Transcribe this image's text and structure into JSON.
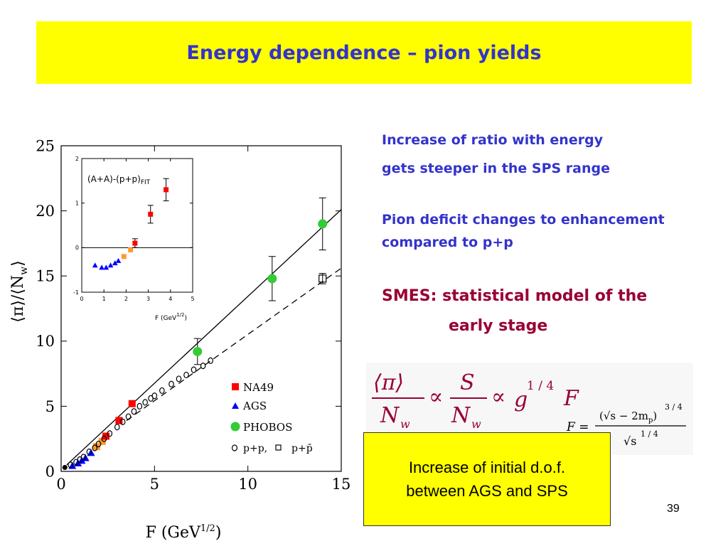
{
  "slide": {
    "title": "Energy dependence – pion yields",
    "bullets": [
      "Increase of ratio with energy",
      "gets steeper in the SPS range",
      "Pion deficit changes to enhancement",
      "compared to p+p"
    ],
    "smes": [
      "SMES: statistical model of the",
      "early stage"
    ],
    "formula": {
      "lhs_top": "⟨π⟩",
      "lhs_bot": "N",
      "lhs_sub": "w",
      "prop": "∝",
      "mid_top": "S",
      "mid_bot": "N",
      "mid_sub": "w",
      "g": "g",
      "g_exp": "1 / 4",
      "F": "F",
      "def_lhs": "F =",
      "def_num": "(√s − 2m",
      "def_num_sub": "p",
      "def_num_close": ")",
      "def_num_exp": "3 / 4",
      "def_den": "√s",
      "def_den_exp": "1 / 4"
    },
    "note": [
      "Increase of initial d.o.f.",
      "between AGS and SPS"
    ],
    "page_number": "39"
  },
  "colors": {
    "title_bg": "#ffff00",
    "title_text": "#3333cc",
    "smes_text": "#990033",
    "na49": "#ff0000",
    "ags": "#0000ff",
    "phobos": "#33cc33",
    "orange": "#ff9933"
  },
  "chart_data": [
    {
      "type": "scatter",
      "xlabel": "F (GeV",
      "xlabel_sup": "1/2",
      "xlabel_end": ")",
      "ylabel": "⟨π⟩/⟨N",
      "ylabel_sub": "w",
      "ylabel_end": "⟩",
      "xlim": [
        0,
        15
      ],
      "ylim": [
        0,
        25
      ],
      "xticks": [
        0,
        5,
        10,
        15
      ],
      "yticks": [
        0,
        5,
        10,
        15,
        20,
        25
      ],
      "legend": [
        {
          "label": "NA49",
          "marker": "square",
          "color": "#ff0000"
        },
        {
          "label": "AGS",
          "marker": "triangle",
          "color": "#0000ff"
        },
        {
          "label": "PHOBOS",
          "marker": "circle",
          "color": "#33cc33"
        },
        {
          "label": "p+p,",
          "marker": "open-circle",
          "color": "#000000"
        },
        {
          "label": "p+p̄",
          "marker": "open-square",
          "color": "#000000"
        }
      ],
      "lines": [
        {
          "style": "solid",
          "points": [
            [
              0.3,
              0.5
            ],
            [
              15,
              20.1
            ]
          ]
        },
        {
          "style": "dashed",
          "points": [
            [
              3.5,
              3.9
            ],
            [
              15,
              15.6
            ]
          ]
        }
      ],
      "series": [
        {
          "marker": "triangle",
          "color": "#0000ff",
          "points": [
            [
              0.6,
              0.4
            ],
            [
              0.9,
              0.6
            ],
            [
              1.1,
              0.8
            ],
            [
              1.3,
              1.0
            ],
            [
              1.6,
              1.4
            ]
          ]
        },
        {
          "marker": "square",
          "color": "#ff9933",
          "points": [
            [
              1.9,
              1.9
            ],
            [
              2.2,
              2.3
            ]
          ]
        },
        {
          "marker": "square",
          "color": "#ff0000",
          "points": [
            [
              2.4,
              2.7
            ],
            [
              3.1,
              3.9
            ],
            [
              3.8,
              5.2
            ]
          ]
        },
        {
          "marker": "circle",
          "color": "#33cc33",
          "points": [
            [
              7.3,
              9.2
            ],
            [
              11.3,
              14.8
            ],
            [
              14.0,
              19.0
            ]
          ],
          "errors": [
            1.0,
            1.7,
            2.0
          ]
        },
        {
          "marker": "open-square",
          "color": "#000000",
          "points": [
            [
              14.0,
              14.8
            ]
          ],
          "errors": [
            0.4
          ]
        },
        {
          "marker": "open-circle",
          "color": "#000000",
          "points": [
            [
              0.5,
              0.5
            ],
            [
              0.8,
              0.7
            ],
            [
              1.0,
              0.9
            ],
            [
              1.2,
              1.1
            ],
            [
              1.5,
              1.5
            ],
            [
              1.8,
              1.8
            ],
            [
              2.0,
              2.1
            ],
            [
              2.3,
              2.5
            ],
            [
              2.6,
              2.9
            ],
            [
              3.0,
              3.4
            ],
            [
              3.3,
              3.8
            ],
            [
              3.6,
              4.2
            ],
            [
              3.9,
              4.6
            ],
            [
              4.2,
              5.0
            ],
            [
              4.5,
              5.3
            ],
            [
              4.8,
              5.6
            ],
            [
              5.0,
              5.8
            ],
            [
              5.4,
              6.2
            ],
            [
              5.9,
              6.7
            ],
            [
              6.3,
              7.1
            ],
            [
              6.7,
              7.4
            ],
            [
              7.1,
              7.8
            ],
            [
              7.6,
              8.1
            ],
            [
              8.0,
              8.5
            ]
          ]
        },
        {
          "marker": "dot",
          "color": "#000000",
          "points": [
            [
              0.2,
              0.3
            ]
          ]
        }
      ]
    },
    {
      "type": "scatter",
      "title": "(A+A)-(p+p)",
      "title_sub": "FIT",
      "xlabel": "F (GeV",
      "xlabel_sup": "1/2",
      "xlabel_end": ")",
      "xlim": [
        0,
        5
      ],
      "ylim": [
        -1,
        2
      ],
      "xticks": [
        0,
        1,
        2,
        3,
        4,
        5
      ],
      "yticks": [
        -1,
        0,
        1,
        2
      ],
      "series": [
        {
          "marker": "triangle",
          "color": "#0000ff",
          "points": [
            [
              0.6,
              -0.4
            ],
            [
              0.9,
              -0.45
            ],
            [
              1.1,
              -0.45
            ],
            [
              1.3,
              -0.4
            ],
            [
              1.5,
              -0.35
            ],
            [
              1.65,
              -0.3
            ]
          ]
        },
        {
          "marker": "square",
          "color": "#ff9933",
          "points": [
            [
              1.9,
              -0.2
            ],
            [
              2.2,
              -0.05
            ]
          ]
        },
        {
          "marker": "square",
          "color": "#ff0000",
          "points": [
            [
              2.4,
              0.1
            ],
            [
              3.1,
              0.75
            ],
            [
              3.8,
              1.3
            ]
          ],
          "errors": [
            0.1,
            0.2,
            0.25
          ]
        }
      ]
    }
  ]
}
